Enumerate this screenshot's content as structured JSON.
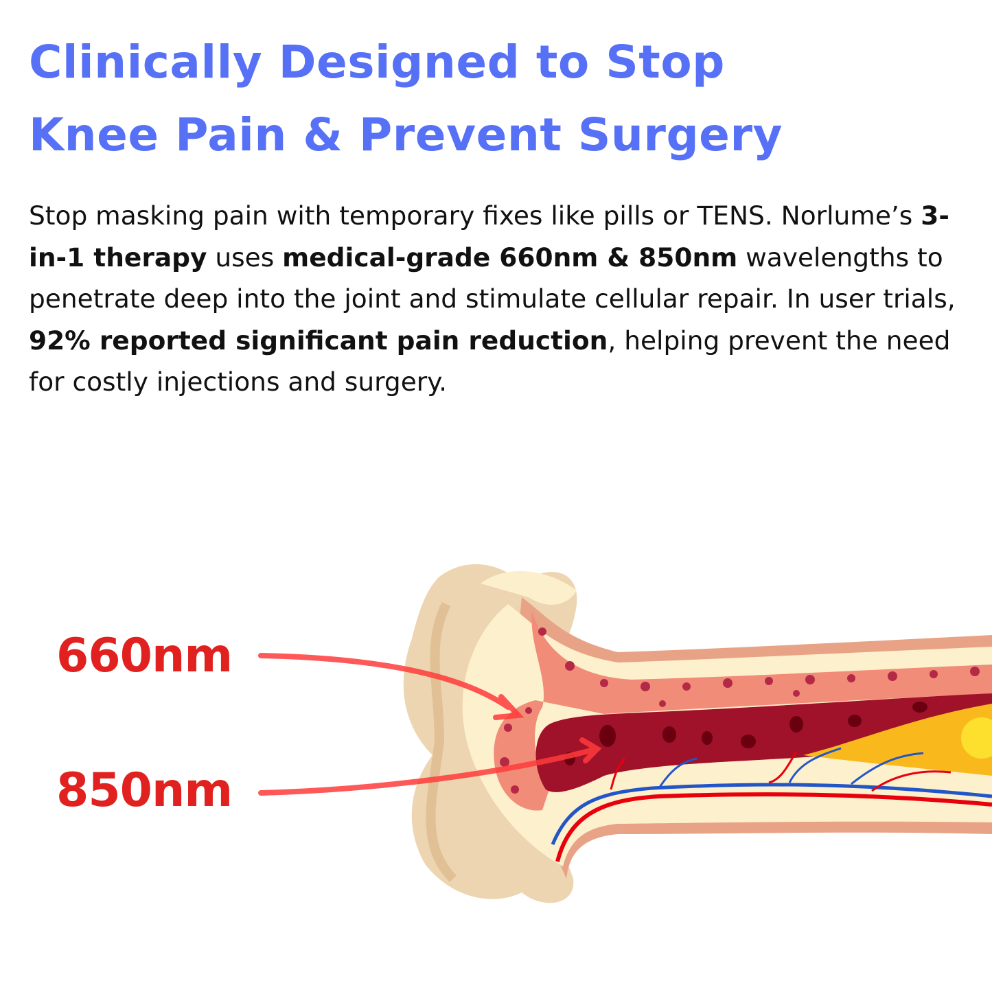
{
  "headline": {
    "line1": "Clinically Designed to Stop",
    "line2": "Knee Pain & Prevent Surgery"
  },
  "body": {
    "p1": "Stop masking pain with temporary fixes like pills or TENS. Norlume’s ",
    "b1": "3-in-1 therapy",
    "p2": " uses ",
    "b2": "medical-grade 660nm & 850nm",
    "p3": " wavelengths to penetrate deep into the joint and stimulate cellular repair. In user trials, ",
    "b3": "92% reported significant pain reduction",
    "p4": ", helping prevent the need for costly injections and surgery."
  },
  "illustration": {
    "labels": {
      "wavelength_1": "660nm",
      "wavelength_2": "850nm"
    },
    "colors": {
      "headline": "#5670f6",
      "label": "#e0211f",
      "arrow": "#ff3b3b",
      "bone_outer": "#ecd5b0",
      "periosteum": "#e8a387",
      "compact_bone": "#fdf0cc",
      "spongy_bone": "#f08c78",
      "red_marrow": "#a0112a",
      "yellow_marrow": "#f9b91c",
      "vein": "#2255c8",
      "artery": "#e8000c"
    }
  }
}
